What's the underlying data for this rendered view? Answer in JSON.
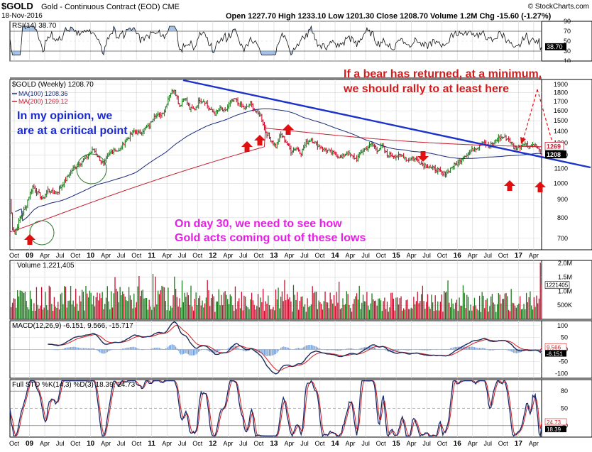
{
  "header": {
    "symbol": "$GOLD",
    "description": "Gold - Continuous Contract (EOD)",
    "exchange": "CME",
    "date": "18-Nov-2016",
    "brand": "© StockCharts.com",
    "ohlc": "Open 1227.70  High 1233.10  Low 1201.30  Close 1208.70  Volume 1.2M  Chg -15.60 (-1.27%)"
  },
  "colors": {
    "price_up": "#1e7a1e",
    "price_down": "#c8102e",
    "ma100": "#1a2a7a",
    "ma200": "#c81e32",
    "trendline": "#1c32c8",
    "annotation_blue": "#1a2ad0",
    "annotation_red": "#d21c1c",
    "annotation_magenta": "#e61ee6",
    "arrow_red": "#e01010",
    "rsi_fill": "#6e9bd8",
    "macd_line": "#1a2a5a",
    "signal_line": "#d21c1c",
    "histogram": "#6e9bd8",
    "sto_k": "#1a2a6a",
    "sto_d": "#d21c1c"
  },
  "annotations": {
    "opinion_line1": "In my opinion, we",
    "opinion_line2": "are at a critical point",
    "bear_line1": "If a bear has returned, at a minimum,",
    "bear_line2": "we should rally to at least here",
    "day30_line1": "On day 30, we need to see how",
    "day30_line2": "Gold acts coming out of these lows"
  },
  "xaxis_labels": [
    "Oct",
    "09",
    "Apr",
    "Jul",
    "Oct",
    "10",
    "Apr",
    "Jul",
    "Oct",
    "11",
    "Apr",
    "Jul",
    "Oct",
    "12",
    "Apr",
    "Jul",
    "Oct",
    "13",
    "Apr",
    "Jul",
    "Oct",
    "14",
    "Apr",
    "Jul",
    "Oct",
    "15",
    "Apr",
    "Jul",
    "Oct",
    "16",
    "Apr",
    "Jul",
    "Oct",
    "17",
    "Apr"
  ],
  "chart_data": [
    {
      "type": "line",
      "panel": "rsi",
      "label": "RSI(14) 38.70",
      "yticks": [
        10,
        30,
        50,
        70,
        90
      ],
      "ylim": [
        10,
        90
      ],
      "value_tag": "38.70"
    },
    {
      "type": "bar",
      "panel": "price",
      "label": "$GOLD (Weekly) 1208.70",
      "ma_labels": [
        "MA(100) 1208.36",
        "MA(200) 1269.12"
      ],
      "yticks": [
        700,
        800,
        900,
        1000,
        1100,
        1200,
        1300,
        1400,
        1500,
        1600,
        1700,
        1800,
        1900
      ],
      "ylim": [
        650,
        1960
      ],
      "value_tags": [
        "1269",
        "1208"
      ],
      "scale": "log",
      "price_anchors": {
        "t": [
          0,
          2,
          4,
          8,
          12,
          15,
          18,
          22,
          26,
          30,
          34,
          38,
          42,
          46,
          50,
          54,
          58,
          62,
          66,
          70,
          74,
          78,
          82,
          86,
          90,
          94,
          98,
          102,
          106,
          110,
          114,
          118,
          122,
          126,
          130,
          134,
          138,
          142,
          146,
          150,
          154,
          158,
          162,
          166,
          170,
          174,
          178,
          182,
          186,
          190,
          194,
          198,
          202,
          206,
          210,
          214,
          218,
          222,
          226,
          230,
          234,
          238,
          242,
          246,
          250,
          254,
          258,
          262,
          266,
          270,
          274,
          278,
          282,
          286,
          290,
          294,
          298,
          302,
          306,
          310,
          314,
          318,
          322,
          326,
          330,
          334,
          338,
          342,
          346,
          350,
          354,
          358,
          362,
          366,
          370,
          374,
          378,
          382,
          386,
          390,
          394,
          398,
          402,
          406,
          410,
          414,
          420
        ],
        "v": [
          900,
          750,
          720,
          800,
          850,
          920,
          980,
          940,
          900,
          960,
          940,
          950,
          1000,
          1050,
          1100,
          1130,
          1160,
          1200,
          1250,
          1180,
          1130,
          1200,
          1250,
          1230,
          1300,
          1350,
          1400,
          1380,
          1420,
          1450,
          1560,
          1550,
          1600,
          1780,
          1840,
          1650,
          1750,
          1620,
          1620,
          1720,
          1700,
          1610,
          1570,
          1620,
          1590,
          1690,
          1720,
          1650,
          1620,
          1680,
          1590,
          1550,
          1400,
          1330,
          1270,
          1370,
          1310,
          1230,
          1260,
          1220,
          1300,
          1330,
          1290,
          1260,
          1240,
          1220,
          1200,
          1180,
          1220,
          1190,
          1170,
          1230,
          1260,
          1290,
          1240,
          1270,
          1200,
          1200,
          1190,
          1200,
          1160,
          1180,
          1160,
          1130,
          1120,
          1100,
          1090,
          1060,
          1080,
          1120,
          1140,
          1190,
          1210,
          1250,
          1270,
          1320,
          1260,
          1300,
          1340,
          1350,
          1330,
          1260,
          1260,
          1300,
          1270,
          1290,
          1210
        ]
      }
    },
    {
      "type": "bar",
      "panel": "volume",
      "label": "Volume 1,221,405",
      "yticks": [
        "500K",
        "1.0M",
        "1.5M",
        "2.0M"
      ],
      "ylim": [
        0,
        2100000
      ],
      "value_tag": "1221405"
    },
    {
      "type": "line",
      "panel": "macd",
      "label": "MACD(12,26,9) -6.151, 9.566, -15.717",
      "yticks": [
        -100,
        -50,
        0,
        50,
        100
      ],
      "ylim": [
        -120,
        120
      ],
      "value_tags": [
        "9.566",
        "-6.151"
      ]
    },
    {
      "type": "line",
      "panel": "stochastic",
      "label": "Full STO %K(14,3) %D(3) 18.39, 24.73",
      "yticks": [
        20,
        50,
        80
      ],
      "ylim": [
        0,
        100
      ],
      "value_tags": [
        "24.73",
        "18.39"
      ]
    }
  ]
}
